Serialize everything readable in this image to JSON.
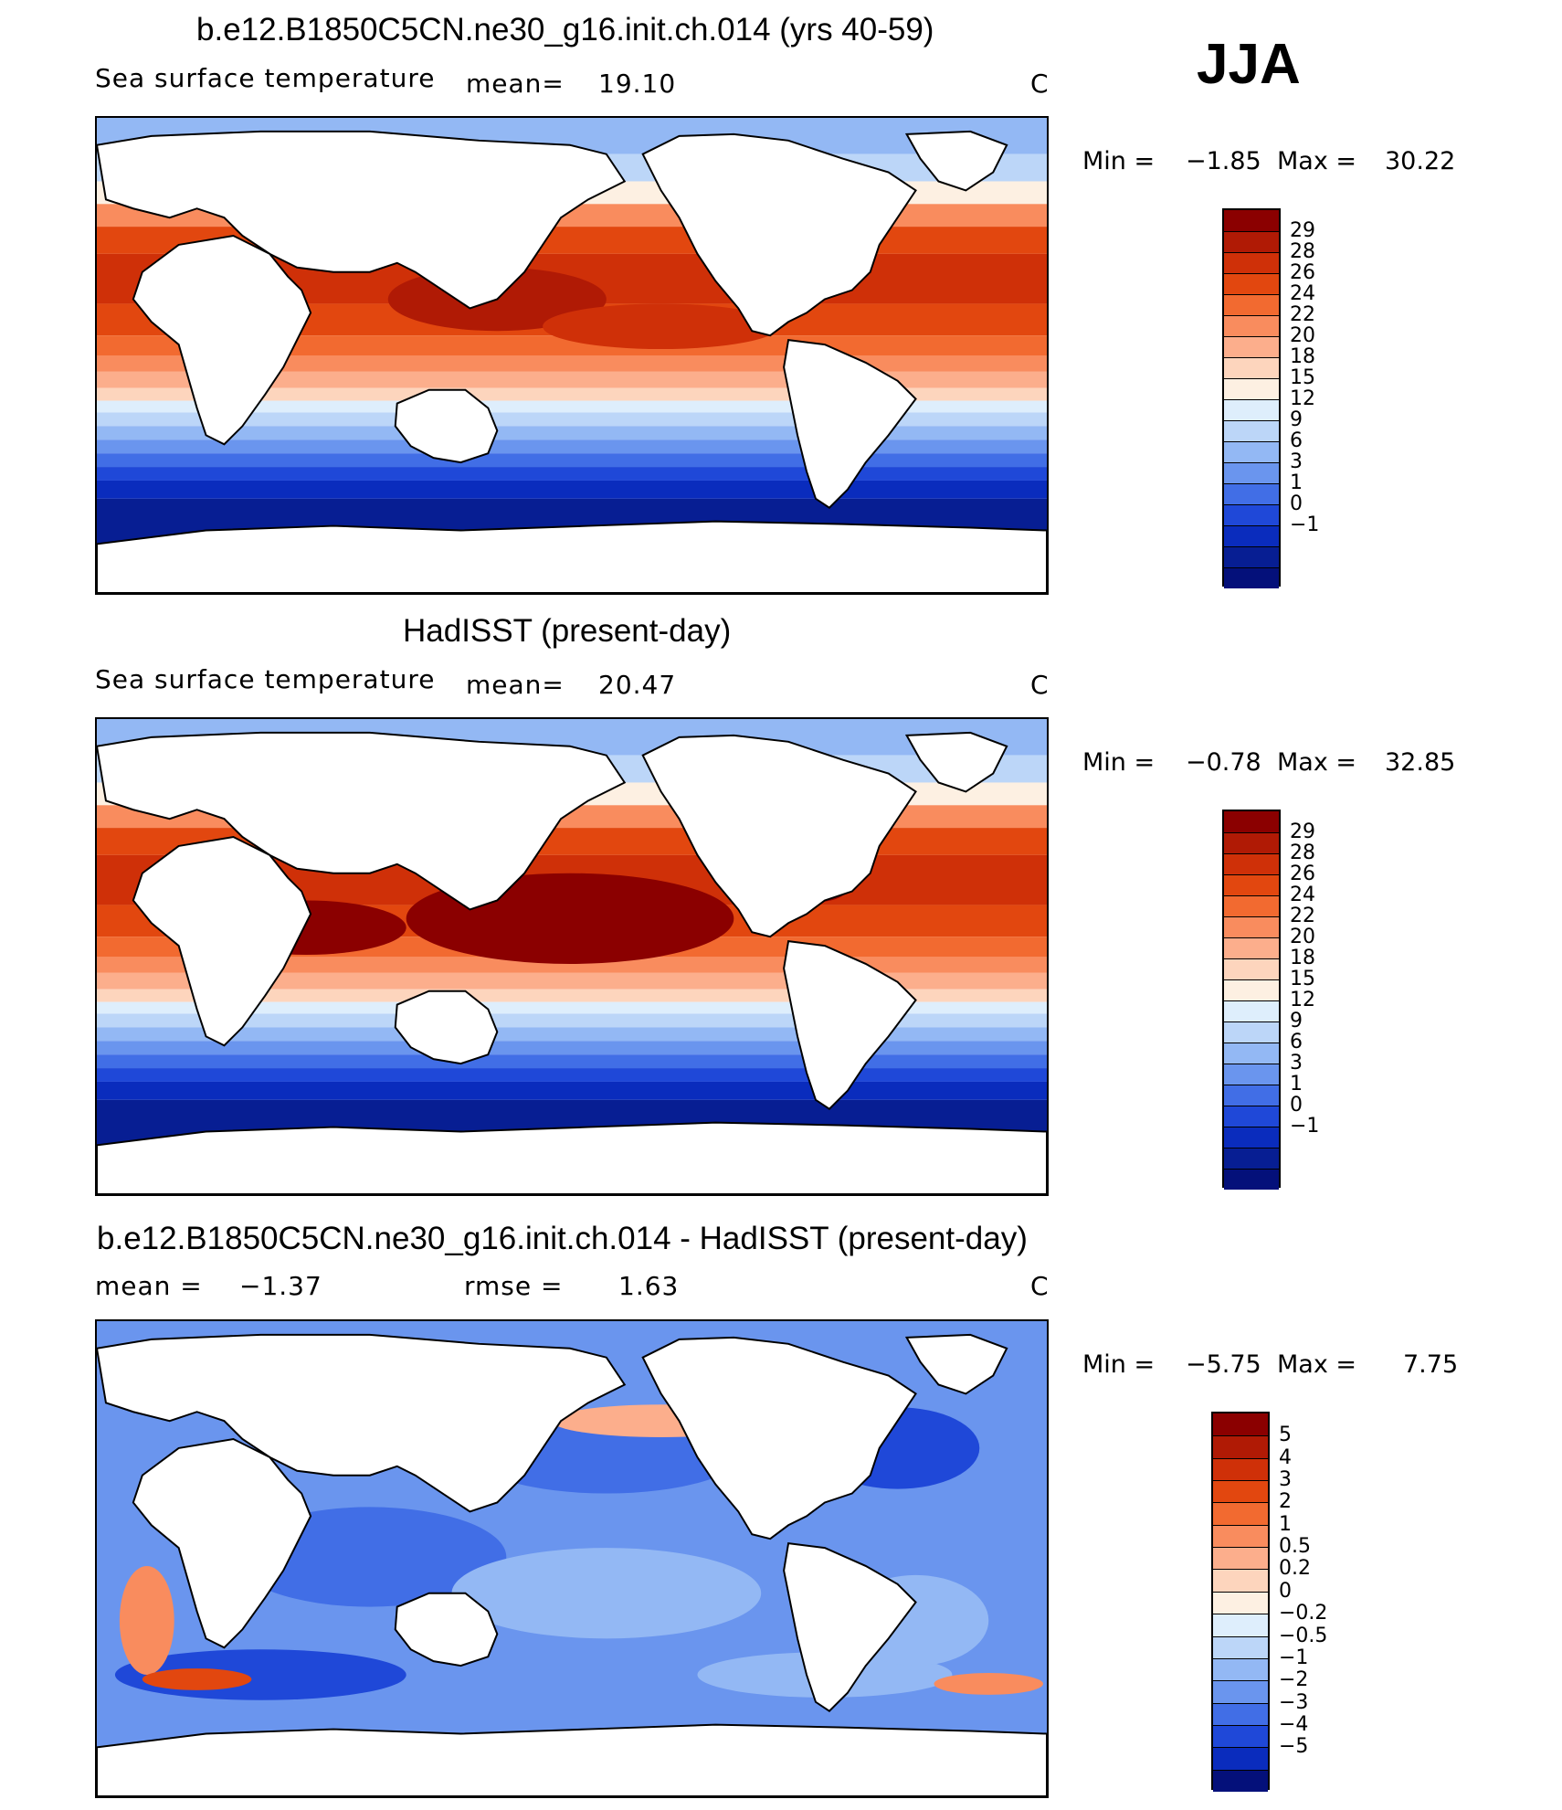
{
  "season": "JJA",
  "panels": [
    {
      "title": "b.e12.B1850C5CN.ne30_g16.init.ch.014 (yrs 40-59)",
      "variable": "Sea surface temperature",
      "stat1_label": "mean=",
      "stat1_value": "19.10",
      "stat2_label": "",
      "stat2_value": "",
      "units": "C",
      "min_label": "Min =",
      "min_value": "−1.85",
      "max_label": "Max =",
      "max_value": "30.22"
    },
    {
      "title": "HadISST (present-day)",
      "variable": "Sea surface temperature",
      "stat1_label": "mean=",
      "stat1_value": "20.47",
      "stat2_label": "",
      "stat2_value": "",
      "units": "C",
      "min_label": "Min =",
      "min_value": "−0.78",
      "max_label": "Max =",
      "max_value": "32.85"
    },
    {
      "title": "b.e12.B1850C5CN.ne30_g16.init.ch.014 - HadISST (present-day)",
      "variable": "",
      "stat1_label": "mean =",
      "stat1_value": "−1.37",
      "stat2_label": "rmse =",
      "stat2_value": "1.63",
      "units": "C",
      "min_label": "Min =",
      "min_value": "−5.75",
      "max_label": "Max =",
      "max_value": "7.75"
    }
  ],
  "chart_data": [
    {
      "type": "heatmap",
      "title": "b.e12.B1850C5CN.ne30_g16.init.ch.014 (yrs 40-59)",
      "field": "Sea surface temperature",
      "units": "C",
      "mean": 19.1,
      "min": -1.85,
      "max": 30.22,
      "colorbar_levels": [
        "29",
        "28",
        "26",
        "24",
        "22",
        "20",
        "18",
        "15",
        "12",
        "9",
        "6",
        "3",
        "1",
        "0",
        "−1"
      ],
      "colorbar_colors": [
        "#8b0000",
        "#b01a05",
        "#cf3008",
        "#e2470f",
        "#f26a30",
        "#f98c5e",
        "#fcae8c",
        "#fdd5bd",
        "#fdf0e2",
        "#deeefc",
        "#bcd6f8",
        "#93b8f4",
        "#6a95ee",
        "#416ee6",
        "#1f48d8",
        "#0a2cbd",
        "#071e93",
        "#04107a"
      ]
    },
    {
      "type": "heatmap",
      "title": "HadISST (present-day)",
      "field": "Sea surface temperature",
      "units": "C",
      "mean": 20.47,
      "min": -0.78,
      "max": 32.85,
      "colorbar_levels": [
        "29",
        "28",
        "26",
        "24",
        "22",
        "20",
        "18",
        "15",
        "12",
        "9",
        "6",
        "3",
        "1",
        "0",
        "−1"
      ],
      "colorbar_colors": [
        "#8b0000",
        "#b01a05",
        "#cf3008",
        "#e2470f",
        "#f26a30",
        "#f98c5e",
        "#fcae8c",
        "#fdd5bd",
        "#fdf0e2",
        "#deeefc",
        "#bcd6f8",
        "#93b8f4",
        "#6a95ee",
        "#416ee6",
        "#1f48d8",
        "#0a2cbd",
        "#071e93",
        "#04107a"
      ]
    },
    {
      "type": "heatmap",
      "title": "b.e12.B1850C5CN.ne30_g16.init.ch.014 - HadISST (present-day)",
      "units": "C",
      "mean": -1.37,
      "rmse": 1.63,
      "min": -5.75,
      "max": 7.75,
      "colorbar_levels": [
        "5",
        "4",
        "3",
        "2",
        "1",
        "0.5",
        "0.2",
        "0",
        "−0.2",
        "−0.5",
        "−1",
        "−2",
        "−3",
        "−4",
        "−5"
      ],
      "colorbar_colors": [
        "#8b0000",
        "#b01a05",
        "#cf3008",
        "#e2470f",
        "#f26a30",
        "#f98c5e",
        "#fcae8c",
        "#fdd5bd",
        "#fdf0e2",
        "#deeefc",
        "#bcd6f8",
        "#93b8f4",
        "#6a95ee",
        "#416ee6",
        "#1f48d8",
        "#0a2cbd",
        "#04107a"
      ]
    }
  ]
}
